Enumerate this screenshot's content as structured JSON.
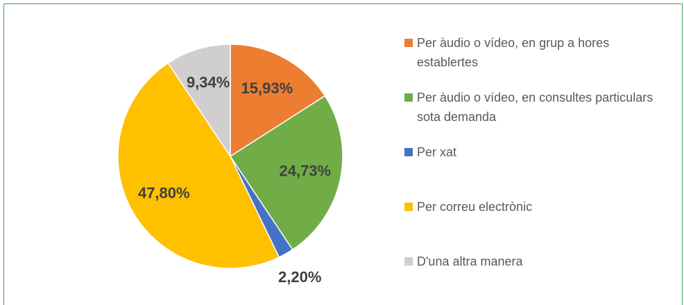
{
  "chart_data": {
    "type": "pie",
    "categories": [
      "Per àudio o vídeo, en grup a hores establertes",
      "Per àudio o vídeo, en consultes particulars sota demanda",
      "Per xat",
      "Per correu electrònic",
      "D'una altra manera"
    ],
    "values": [
      15.93,
      24.73,
      2.2,
      47.8,
      9.34
    ],
    "value_labels": [
      "15,93%",
      "24,73%",
      "2,20%",
      "47,80%",
      "9,34%"
    ],
    "colors": [
      "#ed7d31",
      "#70ad47",
      "#4472c4",
      "#ffc000",
      "#d0cece"
    ],
    "legend": "right"
  }
}
